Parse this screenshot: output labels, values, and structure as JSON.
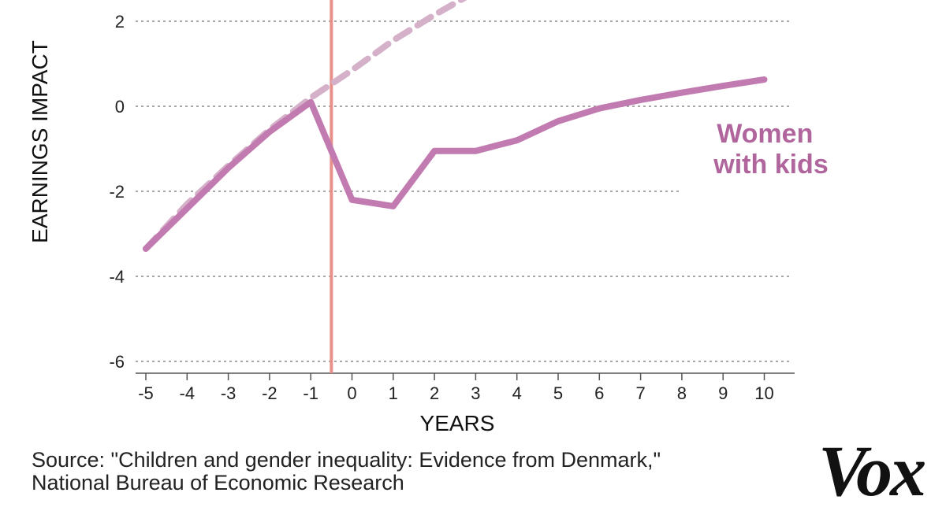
{
  "chart_data": {
    "type": "line",
    "xlabel": "YEARS",
    "ylabel": "EARNINGS IMPACT",
    "xlim": [
      -5,
      10
    ],
    "ylim": [
      -6,
      2
    ],
    "x_ticks": [
      -5,
      -4,
      -3,
      -2,
      -1,
      0,
      1,
      2,
      3,
      4,
      5,
      6,
      7,
      8,
      9,
      10
    ],
    "y_ticks": [
      2,
      0,
      -2,
      -4,
      -6
    ],
    "grid": "horizontal dotted",
    "event_line_x": -0.5,
    "series": [
      {
        "name": "Women with kids",
        "label_lines": [
          "Women",
          "with kids"
        ],
        "style": "solid",
        "color": "#c27bb0",
        "x": [
          -5,
          -4,
          -3,
          -2,
          -1,
          0,
          1,
          2,
          3,
          4,
          5,
          6,
          7,
          8,
          9,
          10
        ],
        "y": [
          -3.35,
          -2.4,
          -1.45,
          -0.6,
          0.1,
          -2.2,
          -2.35,
          -1.05,
          -1.05,
          -0.8,
          -0.35,
          -0.05,
          0.15,
          0.32,
          0.48,
          0.63
        ]
      },
      {
        "style": "dashed",
        "color": "#d4b0c9",
        "x": [
          -5,
          -4,
          -3,
          -2,
          -1,
          0,
          1,
          2,
          3
        ],
        "y": [
          -3.35,
          -2.3,
          -1.4,
          -0.55,
          0.2,
          0.85,
          1.55,
          2.15,
          2.7
        ]
      }
    ]
  },
  "source": {
    "line1": "Source: \"Children and gender inequality: Evidence from Denmark,\"",
    "line2": "National Bureau of Economic Research"
  },
  "logo_text": "Vox"
}
